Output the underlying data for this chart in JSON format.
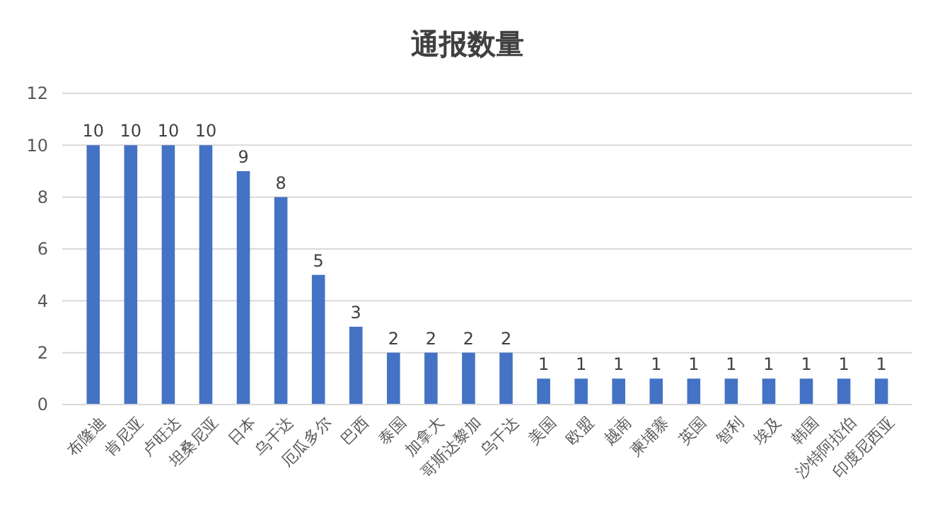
{
  "chart_data": {
    "type": "bar",
    "title": "通报数量",
    "categories": [
      "布隆迪",
      "肯尼亚",
      "卢旺达",
      "坦桑尼亚",
      "日本",
      "乌干达",
      "厄瓜多尔",
      "巴西",
      "泰国",
      "加拿大",
      "哥斯达黎加",
      "乌干达",
      "美国",
      "欧盟",
      "越南",
      "柬埔寨",
      "英国",
      "智利",
      "埃及",
      "韩国",
      "沙特阿拉伯",
      "印度尼西亚"
    ],
    "values": [
      10,
      10,
      10,
      10,
      9,
      8,
      5,
      3,
      2,
      2,
      2,
      2,
      1,
      1,
      1,
      1,
      1,
      1,
      1,
      1,
      1,
      1
    ],
    "color": "#4472c4",
    "ylim": [
      0,
      12
    ],
    "yticks": [
      0,
      2,
      4,
      6,
      8,
      10,
      12
    ],
    "grid": "y",
    "data_labels": true
  }
}
